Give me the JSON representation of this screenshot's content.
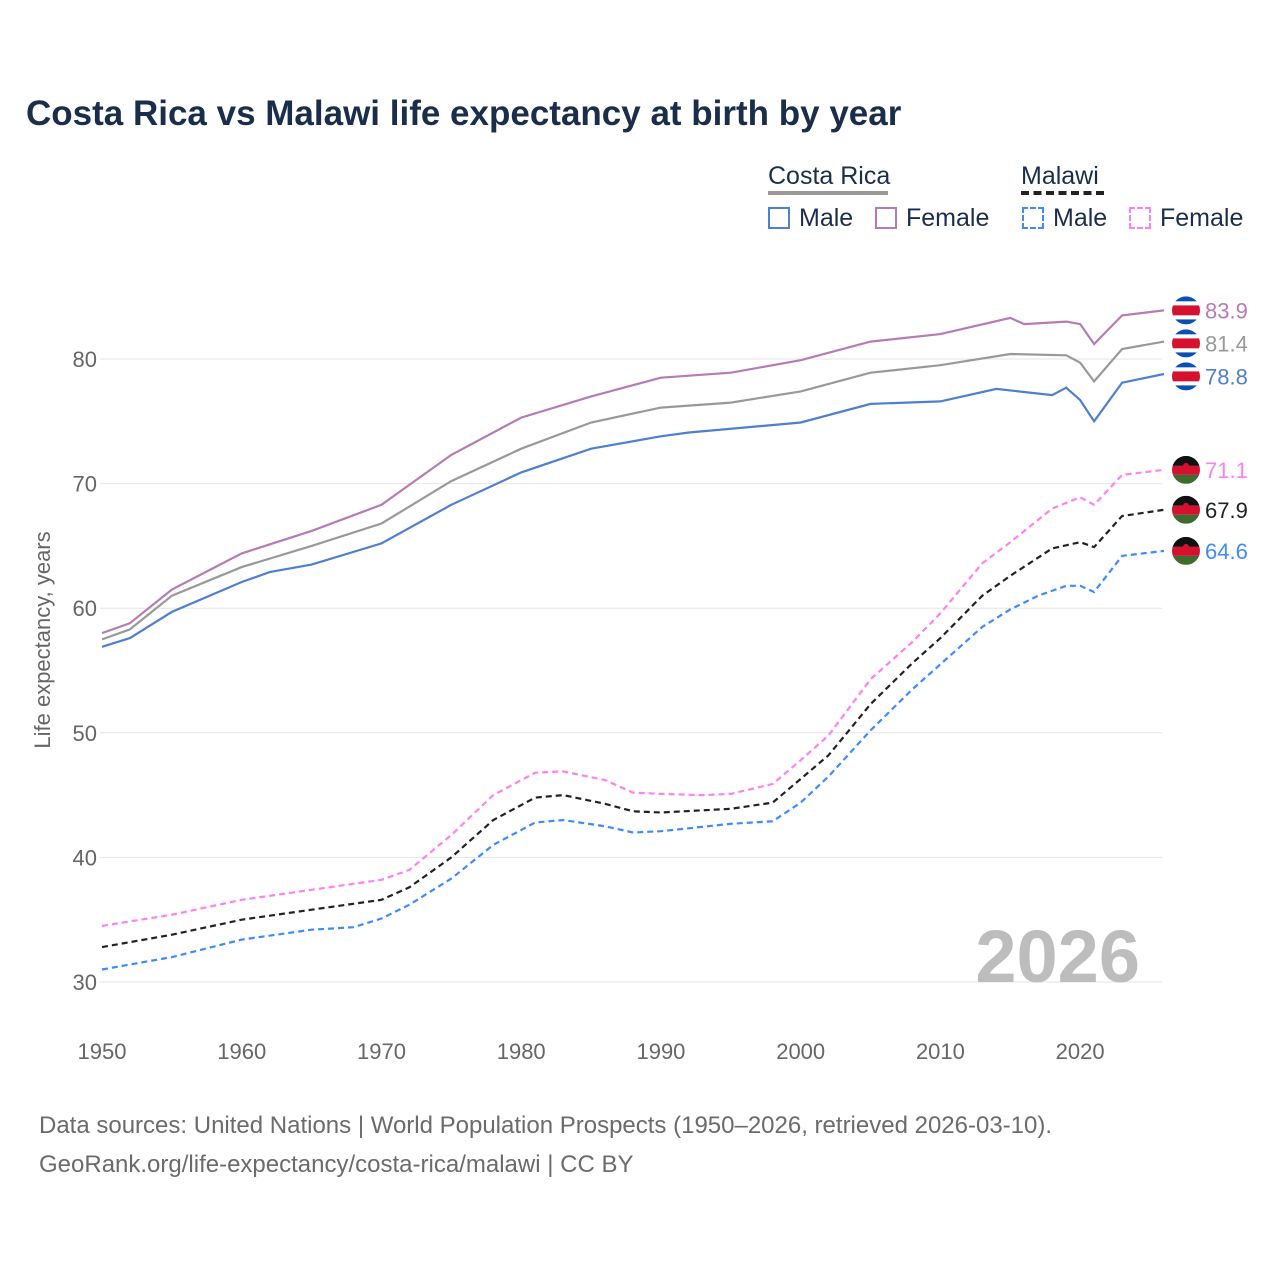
{
  "title": "Costa Rica vs Malawi life expectancy at birth by year",
  "legend": {
    "group1": "Costa Rica",
    "group2": "Malawi",
    "items": [
      "Male",
      "Female",
      "Male",
      "Female"
    ]
  },
  "year_watermark": "2026",
  "footer": {
    "line1": "Data sources: United Nations | World Population Prospects (1950–2026, retrieved 2026-03-10).",
    "line2": "GeoRank.org/life-expectancy/costa-rica/malawi | CC BY"
  },
  "chart_data": {
    "type": "line",
    "title": "Costa Rica vs Malawi life expectancy at birth by year",
    "xlabel": "",
    "ylabel": "Life expectancy, years",
    "xlim": [
      1950,
      2026
    ],
    "ylim": [
      27,
      87
    ],
    "xticks": [
      1950,
      1960,
      1970,
      1980,
      1990,
      2000,
      2010,
      2020
    ],
    "yticks": [
      30,
      40,
      50,
      60,
      70,
      80
    ],
    "grid": true,
    "series": [
      {
        "name": "Costa Rica Female",
        "color": "#b57bb5",
        "dash": false,
        "end_label": "83.9",
        "flag": "costa-rica",
        "x": [
          1950,
          1952,
          1955,
          1960,
          1965,
          1970,
          1975,
          1980,
          1985,
          1990,
          1995,
          2000,
          2005,
          2010,
          2015,
          2016,
          2019,
          2020,
          2021,
          2023,
          2026
        ],
        "y": [
          58.0,
          58.8,
          61.5,
          64.4,
          66.2,
          68.3,
          72.3,
          75.3,
          77.0,
          78.5,
          78.9,
          79.9,
          81.4,
          82.0,
          83.3,
          82.8,
          83.0,
          82.8,
          81.2,
          83.5,
          83.9
        ]
      },
      {
        "name": "Costa Rica",
        "color": "#999999",
        "dash": false,
        "end_label": "81.4",
        "flag": "costa-rica",
        "x": [
          1950,
          1952,
          1955,
          1960,
          1965,
          1970,
          1975,
          1980,
          1985,
          1990,
          1995,
          2000,
          2005,
          2010,
          2015,
          2019,
          2020,
          2021,
          2023,
          2026
        ],
        "y": [
          57.5,
          58.3,
          61.0,
          63.3,
          65.0,
          66.8,
          70.2,
          72.8,
          74.9,
          76.1,
          76.5,
          77.4,
          78.9,
          79.5,
          80.4,
          80.3,
          79.7,
          78.2,
          80.8,
          81.4
        ]
      },
      {
        "name": "Costa Rica Male",
        "color": "#4f7fcf",
        "dash": false,
        "end_label": "78.8",
        "flag": "costa-rica",
        "x": [
          1950,
          1952,
          1955,
          1960,
          1962,
          1965,
          1970,
          1975,
          1980,
          1985,
          1990,
          1992,
          2000,
          2005,
          2010,
          2014,
          2018,
          2019,
          2020,
          2021,
          2023,
          2026
        ],
        "y": [
          56.9,
          57.6,
          59.7,
          62.1,
          62.9,
          63.5,
          65.2,
          68.3,
          70.9,
          72.8,
          73.8,
          74.1,
          74.9,
          76.4,
          76.6,
          77.6,
          77.1,
          77.7,
          76.7,
          75.0,
          78.1,
          78.8
        ]
      },
      {
        "name": "Malawi Female",
        "color": "#ff80f0",
        "dash": true,
        "end_label": "71.1",
        "flag": "malawi",
        "x": [
          1950,
          1955,
          1960,
          1965,
          1970,
          1972,
          1975,
          1978,
          1981,
          1983,
          1986,
          1988,
          1990,
          1993,
          1995,
          1998,
          2000,
          2002,
          2005,
          2008,
          2010,
          2013,
          2015,
          2018,
          2020,
          2021,
          2023,
          2026
        ],
        "y": [
          34.5,
          35.4,
          36.6,
          37.4,
          38.2,
          39.0,
          41.8,
          45.0,
          46.8,
          46.9,
          46.2,
          45.2,
          45.1,
          45.0,
          45.1,
          45.9,
          47.8,
          49.8,
          54.3,
          57.3,
          59.6,
          63.6,
          65.3,
          68.0,
          68.9,
          68.3,
          70.7,
          71.1
        ]
      },
      {
        "name": "Malawi",
        "color": "#222222",
        "dash": true,
        "end_label": "67.9",
        "flag": "malawi",
        "x": [
          1950,
          1955,
          1960,
          1965,
          1970,
          1972,
          1975,
          1978,
          1981,
          1983,
          1986,
          1988,
          1990,
          1995,
          1998,
          2000,
          2002,
          2005,
          2008,
          2010,
          2013,
          2015,
          2018,
          2020,
          2021,
          2023,
          2026
        ],
        "y": [
          32.8,
          33.8,
          35.0,
          35.8,
          36.6,
          37.6,
          40.0,
          43.0,
          44.8,
          45.0,
          44.3,
          43.7,
          43.6,
          43.9,
          44.4,
          46.3,
          48.2,
          52.3,
          55.6,
          57.6,
          61.0,
          62.6,
          64.8,
          65.3,
          64.9,
          67.4,
          67.9
        ]
      },
      {
        "name": "Malawi Male",
        "color": "#3d8bff",
        "dash": true,
        "end_label": "64.6",
        "flag": "malawi",
        "x": [
          1950,
          1955,
          1960,
          1965,
          1968,
          1970,
          1972,
          1975,
          1978,
          1981,
          1983,
          1986,
          1988,
          1990,
          1995,
          1998,
          2000,
          2002,
          2005,
          2008,
          2010,
          2013,
          2015,
          2017,
          2019,
          2020,
          2021,
          2023,
          2026
        ],
        "y": [
          31.0,
          32.0,
          33.4,
          34.2,
          34.4,
          35.1,
          36.2,
          38.3,
          41.0,
          42.8,
          43.0,
          42.5,
          42.0,
          42.1,
          42.7,
          42.9,
          44.4,
          46.5,
          50.2,
          53.5,
          55.5,
          58.5,
          59.9,
          61.0,
          61.8,
          61.8,
          61.3,
          64.2,
          64.6
        ]
      }
    ]
  }
}
